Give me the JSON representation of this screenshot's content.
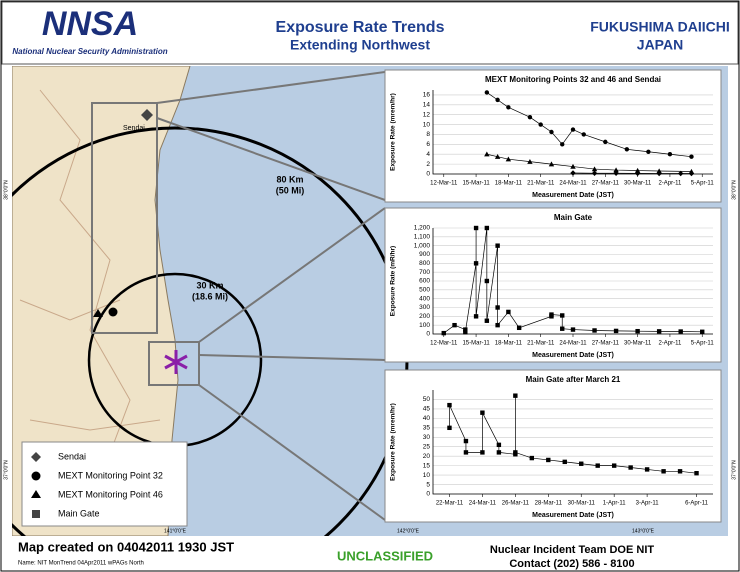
{
  "header": {
    "logo": "NNSA",
    "agency": "National Nuclear Security Administration",
    "title": "Exposure Rate Trends",
    "subtitle": "Extending Northwest",
    "site": "FUKUSHIMA DAIICHI",
    "country": "JAPAN"
  },
  "map": {
    "city": "Sendai",
    "ring_80": "80 Km",
    "ring_80_mi": "(50 Mi)",
    "ring_30": "30 Km",
    "ring_30_mi": "(18.6 Mi)",
    "lat_labels": [
      "38°0'0\"N",
      "37°0'0\"N"
    ],
    "lon_labels": [
      "141°0'0\"E",
      "142°0'0\"E",
      "143°0'0\"E"
    ],
    "legend": [
      "Sendai",
      "MEXT Monitoring Point 32",
      "MEXT Monitoring Point 46",
      "Main Gate"
    ]
  },
  "footer": {
    "created": "Map created on 04042011 1930 JST",
    "name": "Name: NIT MonTrend 04Apr2011 wPAGs North",
    "classification": "UNCLASSIFIED",
    "team": "Nuclear Incident Team DOE NIT",
    "contact": "Contact (202) 586 - 8100"
  },
  "chart_data": [
    {
      "type": "line",
      "title": "MEXT Monitoring Points 32 and 46 and Sendai",
      "x_label": "Measurement Date (JST)",
      "y_label": "Exposure Rate (mrem/hr)",
      "xlim": [
        "2011-03-11",
        "2011-04-06"
      ],
      "ylim": [
        0,
        17
      ],
      "yticks": [
        0,
        2,
        4,
        6,
        8,
        10,
        12,
        14,
        16
      ],
      "xticks": [
        {
          "value": "2011-03-12",
          "label": "12-Mar-11"
        },
        {
          "value": "2011-03-15",
          "label": "15-Mar-11"
        },
        {
          "value": "2011-03-18",
          "label": "18-Mar-11"
        },
        {
          "value": "2011-03-21",
          "label": "21-Mar-11"
        },
        {
          "value": "2011-03-24",
          "label": "24-Mar-11"
        },
        {
          "value": "2011-03-27",
          "label": "27-Mar-11"
        },
        {
          "value": "2011-03-30",
          "label": "30-Mar-11"
        },
        {
          "value": "2011-04-02",
          "label": "2-Apr-11"
        },
        {
          "value": "2011-04-05",
          "label": "5-Apr-11"
        }
      ],
      "series": [
        {
          "marker": "circle",
          "color": "#000000",
          "x": [
            "2011-03-16",
            "2011-03-17",
            "2011-03-18",
            "2011-03-20",
            "2011-03-21",
            "2011-03-22",
            "2011-03-23",
            "2011-03-24",
            "2011-03-25",
            "2011-03-27",
            "2011-03-29",
            "2011-03-31",
            "2011-04-02",
            "2011-04-04"
          ],
          "values": [
            16.5,
            15,
            13.5,
            11.5,
            10,
            8.5,
            6,
            9,
            8,
            6.5,
            5,
            4.5,
            4,
            3.5
          ]
        },
        {
          "marker": "triangle",
          "color": "#000000",
          "x": [
            "2011-03-16",
            "2011-03-17",
            "2011-03-18",
            "2011-03-20",
            "2011-03-22",
            "2011-03-24",
            "2011-03-26",
            "2011-03-28",
            "2011-03-30",
            "2011-04-01",
            "2011-04-04"
          ],
          "values": [
            4,
            3.5,
            3,
            2.5,
            2,
            1.5,
            1,
            0.8,
            0.7,
            0.6,
            0.5
          ]
        },
        {
          "marker": "diamond",
          "color": "#000000",
          "x": [
            "2011-03-24",
            "2011-03-26",
            "2011-03-28",
            "2011-03-30",
            "2011-04-01",
            "2011-04-03",
            "2011-04-04"
          ],
          "values": [
            0.2,
            0.15,
            0.15,
            0.12,
            0.1,
            0.1,
            0.1
          ]
        }
      ]
    },
    {
      "type": "line",
      "title": "Main Gate",
      "x_label": "Measurement Date (JST)",
      "y_label": "Exposure Rate (mR/hr)",
      "xlim": [
        "2011-03-11",
        "2011-04-06"
      ],
      "ylim": [
        0,
        1200
      ],
      "yticks": [
        0,
        100,
        200,
        300,
        400,
        500,
        600,
        700,
        800,
        900,
        {
          "value": 1000,
          "label": "1,000"
        },
        {
          "value": 1100,
          "label": "1,100"
        },
        {
          "value": 1200,
          "label": "1,200"
        }
      ],
      "xticks": [
        {
          "value": "2011-03-12",
          "label": "12-Mar-11"
        },
        {
          "value": "2011-03-15",
          "label": "15-Mar-11"
        },
        {
          "value": "2011-03-18",
          "label": "18-Mar-11"
        },
        {
          "value": "2011-03-21",
          "label": "21-Mar-11"
        },
        {
          "value": "2011-03-24",
          "label": "24-Mar-11"
        },
        {
          "value": "2011-03-27",
          "label": "27-Mar-11"
        },
        {
          "value": "2011-03-30",
          "label": "30-Mar-11"
        },
        {
          "value": "2011-04-02",
          "label": "2-Apr-11"
        },
        {
          "value": "2011-04-05",
          "label": "5-Apr-11"
        }
      ],
      "series": [
        {
          "marker": "square",
          "color": "#000000",
          "x": [
            "2011-03-12",
            "2011-03-13",
            "2011-03-14",
            "2011-03-14",
            "2011-03-15",
            "2011-03-15",
            "2011-03-15",
            "2011-03-16",
            "2011-03-16",
            "2011-03-16",
            "2011-03-17",
            "2011-03-17",
            "2011-03-17",
            "2011-03-18",
            "2011-03-19",
            "2011-03-22",
            "2011-03-22",
            "2011-03-23",
            "2011-03-23",
            "2011-03-24",
            "2011-03-26",
            "2011-03-28",
            "2011-03-30",
            "2011-04-01",
            "2011-04-03",
            "2011-04-05"
          ],
          "values": [
            10,
            100,
            50,
            20,
            800,
            1200,
            200,
            1200,
            600,
            150,
            1000,
            300,
            100,
            250,
            70,
            200,
            220,
            210,
            60,
            50,
            40,
            35,
            32,
            30,
            28,
            25
          ]
        }
      ]
    },
    {
      "type": "line",
      "title": "Main Gate after March 21",
      "x_label": "Measurement Date (JST)",
      "y_label": "Exposure Rate (mrem/hr)",
      "xlim": [
        "2011-03-21",
        "2011-04-07"
      ],
      "ylim": [
        0,
        55
      ],
      "yticks": [
        0,
        5,
        10,
        15,
        20,
        25,
        30,
        35,
        40,
        45,
        50
      ],
      "xticks": [
        {
          "value": "2011-03-22",
          "label": "22-Mar-11"
        },
        {
          "value": "2011-03-24",
          "label": "24-Mar-11"
        },
        {
          "value": "2011-03-26",
          "label": "26-Mar-11"
        },
        {
          "value": "2011-03-28",
          "label": "28-Mar-11"
        },
        {
          "value": "2011-03-30",
          "label": "30-Mar-11"
        },
        {
          "value": "2011-04-01",
          "label": "1-Apr-11"
        },
        {
          "value": "2011-04-03",
          "label": "3-Apr-11"
        },
        {
          "value": "2011-04-06",
          "label": "6-Apr-11"
        }
      ],
      "series": [
        {
          "marker": "square",
          "color": "#000000",
          "x": [
            "2011-03-22",
            "2011-03-22",
            "2011-03-23",
            "2011-03-23",
            "2011-03-24",
            "2011-03-24",
            "2011-03-25",
            "2011-03-25",
            "2011-03-26",
            "2011-03-26",
            "2011-03-26",
            "2011-03-27",
            "2011-03-28",
            "2011-03-29",
            "2011-03-30",
            "2011-03-31",
            "2011-04-01",
            "2011-04-02",
            "2011-04-03",
            "2011-04-04",
            "2011-04-05",
            "2011-04-06"
          ],
          "values": [
            35,
            47,
            28,
            22,
            22,
            43,
            26,
            22,
            21,
            52,
            22,
            19,
            18,
            17,
            16,
            15,
            15,
            14,
            13,
            12,
            12,
            11
          ]
        }
      ]
    }
  ]
}
